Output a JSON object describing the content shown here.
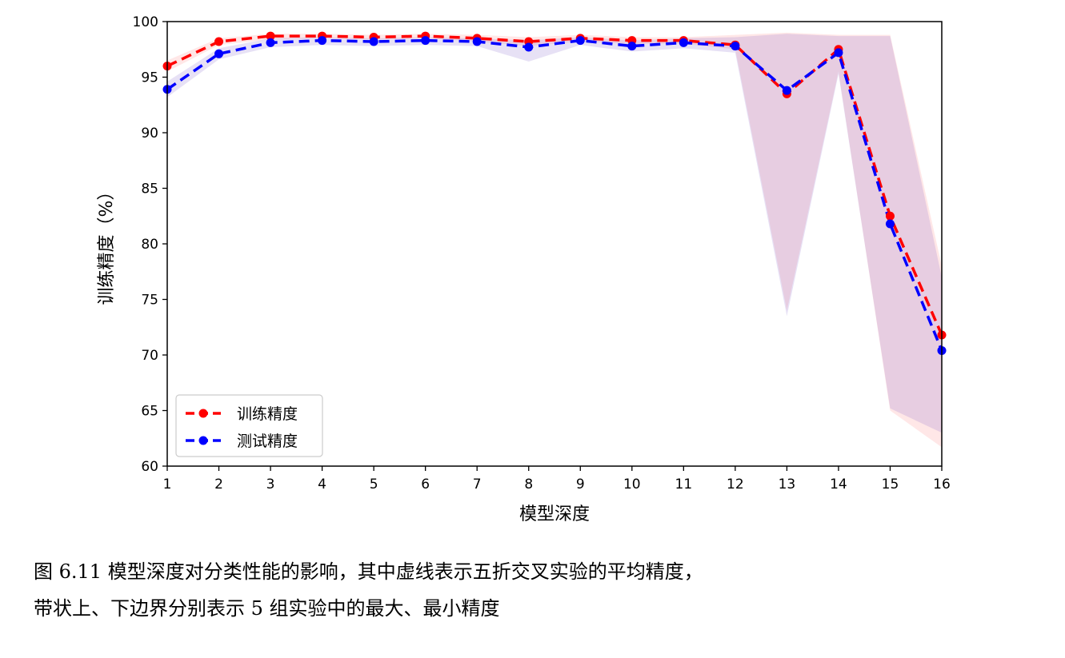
{
  "chart_data": {
    "type": "line",
    "title": "",
    "xlabel": "模型深度",
    "ylabel": "训练精度（%）",
    "x": [
      1,
      2,
      3,
      4,
      5,
      6,
      7,
      8,
      9,
      10,
      11,
      12,
      13,
      14,
      15,
      16
    ],
    "xlim": [
      1,
      16
    ],
    "ylim": [
      60,
      100
    ],
    "xticks": [
      "1",
      "2",
      "3",
      "4",
      "5",
      "6",
      "7",
      "8",
      "9",
      "10",
      "11",
      "12",
      "13",
      "14",
      "15",
      "16"
    ],
    "yticks": [
      "60",
      "65",
      "70",
      "75",
      "80",
      "85",
      "90",
      "95",
      "100"
    ],
    "grid": false,
    "legend_position": "lower-left",
    "series": [
      {
        "name": "训练精度",
        "color": "#ff0000",
        "values": [
          96.0,
          98.2,
          98.7,
          98.7,
          98.6,
          98.7,
          98.5,
          98.2,
          98.5,
          98.3,
          98.3,
          97.9,
          93.5,
          97.5,
          82.5,
          71.8
        ],
        "band_min": [
          95.5,
          97.9,
          98.4,
          98.5,
          98.4,
          98.5,
          98.2,
          97.8,
          98.2,
          98.0,
          98.0,
          97.5,
          74.0,
          95.5,
          65.0,
          61.7
        ],
        "band_max": [
          96.5,
          98.5,
          98.9,
          98.9,
          98.8,
          98.9,
          98.8,
          98.6,
          98.8,
          98.6,
          98.6,
          98.8,
          99.0,
          98.8,
          98.8,
          78.0
        ]
      },
      {
        "name": "测试精度",
        "color": "#0000ff",
        "values": [
          93.9,
          97.1,
          98.1,
          98.3,
          98.2,
          98.3,
          98.2,
          97.7,
          98.3,
          97.8,
          98.1,
          97.8,
          93.8,
          97.2,
          81.8,
          70.4
        ],
        "band_min": [
          93.2,
          96.6,
          97.7,
          97.9,
          97.8,
          97.9,
          97.8,
          96.4,
          97.9,
          97.3,
          97.6,
          97.2,
          73.5,
          95.3,
          65.2,
          63.0
        ],
        "band_max": [
          94.6,
          97.6,
          98.5,
          98.6,
          98.5,
          98.6,
          98.5,
          98.3,
          98.6,
          98.3,
          98.5,
          98.6,
          98.9,
          98.7,
          98.7,
          77.0
        ]
      }
    ]
  },
  "caption": {
    "line1": "图 6.11  模型深度对分类性能的影响，其中虚线表示五折交叉实验的平均精度，",
    "line2": "带状上、下边界分别表示 5 组实验中的最大、最小精度"
  }
}
